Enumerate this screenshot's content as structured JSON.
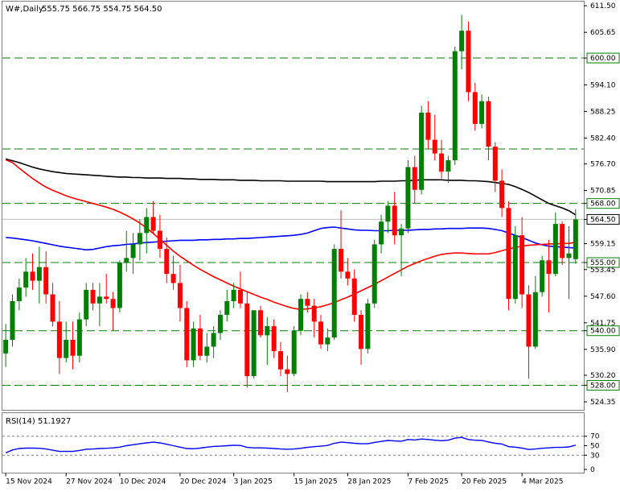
{
  "chart_data": [
    {
      "type": "candlestick",
      "title": "W#,Daily",
      "ohlc_label": "555.75 566.75 554.75 564.50",
      "ylim": [
        522.5,
        612.5
      ],
      "grid": false,
      "yticks": [
        611.5,
        605.65,
        600.0,
        594.1,
        588.25,
        582.4,
        576.7,
        570.85,
        568.0,
        564.5,
        559.15,
        555.0,
        553.45,
        547.6,
        541.75,
        540.0,
        535.9,
        530.2,
        528.0,
        524.35
      ],
      "x_labels": [
        "15 Nov 2024",
        "27 Nov 2024",
        "10 Dec 2024",
        "20 Dec 2024",
        "3 Jan 2025",
        "15 Jan 2025",
        "28 Jan 2025",
        "7 Feb 2025",
        "20 Feb 2025",
        "4 Mar 2025"
      ],
      "horizontal_levels": [
        600.0,
        580.0,
        568.0,
        555.0,
        540.0,
        528.0
      ],
      "current_price": 564.5,
      "candles": [
        [
          535.0,
          541.5,
          532.0,
          538.0
        ],
        [
          538.0,
          548.0,
          536.5,
          546.5
        ],
        [
          546.5,
          551.5,
          544.5,
          549.5
        ],
        [
          549.5,
          556.0,
          547.5,
          553.0
        ],
        [
          553.0,
          557.0,
          549.0,
          551.0
        ],
        [
          551.0,
          558.5,
          546.0,
          554.0
        ],
        [
          554.0,
          557.5,
          546.0,
          548.0
        ],
        [
          548.0,
          550.5,
          541.0,
          542.0
        ],
        [
          542.0,
          546.5,
          530.5,
          534.0
        ],
        [
          534.0,
          542.0,
          533.0,
          538.0
        ],
        [
          538.0,
          542.0,
          531.5,
          534.5
        ],
        [
          534.5,
          544.0,
          533.0,
          542.5
        ],
        [
          542.5,
          550.5,
          541.0,
          549.0
        ],
        [
          549.0,
          550.5,
          544.5,
          546.0
        ],
        [
          546.0,
          550.5,
          541.0,
          547.5
        ],
        [
          547.5,
          552.5,
          546.0,
          547.0
        ],
        [
          547.0,
          548.5,
          540.0,
          545.0
        ],
        [
          545.0,
          555.5,
          544.0,
          555.0
        ],
        [
          555.0,
          562.0,
          553.0,
          556.0
        ],
        [
          556.0,
          561.5,
          552.5,
          559.0
        ],
        [
          559.0,
          564.5,
          555.5,
          561.5
        ],
        [
          561.5,
          567.0,
          557.0,
          565.0
        ],
        [
          565.0,
          568.5,
          561.5,
          562.0
        ],
        [
          562.0,
          565.5,
          556.0,
          558.0
        ],
        [
          558.0,
          560.5,
          550.5,
          552.5
        ],
        [
          552.5,
          556.5,
          549.0,
          550.5
        ],
        [
          550.5,
          554.5,
          542.0,
          545.0
        ],
        [
          545.0,
          546.5,
          532.0,
          533.5
        ],
        [
          533.5,
          542.0,
          532.0,
          540.5
        ],
        [
          540.5,
          543.5,
          533.5,
          534.5
        ],
        [
          534.5,
          539.5,
          533.0,
          536.5
        ],
        [
          536.5,
          541.0,
          534.0,
          539.5
        ],
        [
          539.5,
          544.5,
          538.0,
          543.5
        ],
        [
          543.5,
          549.0,
          542.0,
          546.5
        ],
        [
          546.5,
          550.5,
          545.0,
          549.0
        ],
        [
          549.0,
          553.0,
          545.0,
          546.0
        ],
        [
          546.0,
          548.5,
          527.5,
          530.0
        ],
        [
          530.0,
          544.5,
          529.5,
          544.5
        ],
        [
          544.5,
          545.5,
          538.5,
          539.0
        ],
        [
          539.0,
          543.0,
          532.5,
          541.0
        ],
        [
          541.0,
          542.5,
          534.0,
          535.5
        ],
        [
          535.5,
          537.5,
          530.0,
          531.5
        ],
        [
          531.5,
          534.5,
          526.5,
          530.5
        ],
        [
          530.5,
          541.0,
          530.0,
          540.0
        ],
        [
          540.0,
          548.0,
          539.0,
          547.0
        ],
        [
          547.0,
          548.5,
          544.0,
          545.5
        ],
        [
          545.5,
          547.0,
          538.5,
          542.0
        ],
        [
          542.0,
          543.5,
          536.0,
          537.0
        ],
        [
          537.0,
          540.5,
          535.5,
          538.5
        ],
        [
          538.5,
          559.0,
          538.0,
          558.0
        ],
        [
          558.0,
          566.5,
          551.5,
          553.0
        ],
        [
          553.0,
          556.0,
          550.0,
          551.5
        ],
        [
          551.5,
          553.5,
          542.0,
          543.5
        ],
        [
          543.5,
          544.5,
          532.5,
          536.0
        ],
        [
          536.0,
          547.0,
          535.0,
          546.0
        ],
        [
          546.0,
          560.0,
          545.0,
          559.0
        ],
        [
          559.0,
          565.5,
          557.0,
          564.0
        ],
        [
          564.0,
          568.5,
          561.5,
          567.5
        ],
        [
          567.5,
          570.5,
          559.0,
          561.0
        ],
        [
          561.0,
          563.5,
          552.0,
          562.5
        ],
        [
          562.5,
          577.5,
          561.5,
          576.0
        ],
        [
          576.0,
          578.5,
          568.0,
          571.0
        ],
        [
          571.0,
          589.5,
          570.0,
          588.0
        ],
        [
          588.0,
          590.5,
          580.0,
          582.0
        ],
        [
          582.0,
          587.5,
          577.5,
          579.0
        ],
        [
          579.0,
          582.0,
          573.5,
          575.0
        ],
        [
          575.0,
          578.5,
          572.5,
          577.5
        ],
        [
          577.5,
          602.5,
          576.5,
          601.5
        ],
        [
          601.5,
          609.5,
          597.5,
          606.0
        ],
        [
          606.0,
          608.0,
          590.5,
          592.5
        ],
        [
          592.5,
          594.5,
          584.0,
          585.5
        ],
        [
          585.5,
          592.0,
          584.5,
          590.5
        ],
        [
          590.5,
          591.5,
          577.5,
          580.5
        ],
        [
          580.5,
          581.5,
          570.5,
          573.0
        ],
        [
          573.0,
          575.5,
          565.0,
          567.0
        ],
        [
          567.0,
          568.5,
          544.5,
          547.0
        ],
        [
          547.0,
          563.0,
          546.0,
          561.0
        ],
        [
          561.0,
          565.0,
          545.0,
          548.0
        ],
        [
          548.0,
          550.0,
          529.5,
          536.5
        ],
        [
          536.5,
          552.0,
          536.0,
          548.5
        ],
        [
          548.5,
          556.5,
          547.5,
          555.5
        ],
        [
          555.5,
          560.0,
          544.0,
          552.5
        ],
        [
          552.5,
          566.0,
          552.0,
          563.5
        ],
        [
          563.5,
          564.0,
          554.5,
          556.0
        ],
        [
          556.0,
          563.0,
          547.0,
          557.0
        ],
        [
          555.75,
          566.75,
          554.75,
          564.5
        ]
      ],
      "ma_black": [
        577.8,
        577.4,
        577.0,
        576.5,
        576.0,
        575.6,
        575.3,
        575.0,
        574.8,
        574.6,
        574.5,
        574.4,
        574.3,
        574.2,
        574.1,
        574.0,
        573.9,
        573.8,
        573.8,
        573.7,
        573.7,
        573.6,
        573.6,
        573.6,
        573.5,
        573.5,
        573.5,
        573.4,
        573.4,
        573.3,
        573.3,
        573.3,
        573.2,
        573.2,
        573.2,
        573.1,
        573.1,
        573.1,
        573.0,
        573.0,
        573.0,
        573.0,
        572.9,
        572.9,
        572.9,
        572.9,
        572.9,
        572.9,
        572.8,
        572.8,
        572.8,
        572.8,
        572.8,
        572.8,
        572.8,
        572.8,
        572.9,
        572.9,
        572.9,
        573.0,
        573.0,
        573.1,
        573.2,
        573.2,
        573.2,
        573.2,
        573.1,
        573.1,
        573.1,
        573.0,
        573.0,
        572.9,
        572.8,
        572.6,
        572.4,
        572.2,
        571.7,
        571.1,
        570.4,
        569.6,
        568.8,
        568.0,
        567.5,
        567.0,
        566.4,
        565.5
      ],
      "ma_red": [
        577.6,
        577.0,
        575.8,
        574.6,
        573.5,
        572.5,
        571.6,
        570.9,
        570.3,
        569.7,
        569.2,
        568.8,
        568.4,
        568.0,
        567.6,
        567.2,
        566.7,
        566.1,
        565.4,
        564.6,
        563.7,
        562.6,
        561.4,
        560.1,
        558.8,
        557.5,
        556.4,
        555.4,
        554.4,
        553.5,
        552.7,
        551.9,
        551.2,
        550.5,
        549.8,
        549.2,
        548.6,
        548.0,
        547.4,
        546.9,
        546.3,
        545.8,
        545.3,
        544.9,
        544.7,
        544.8,
        545.0,
        545.3,
        545.7,
        546.2,
        546.8,
        547.4,
        548.1,
        548.8,
        549.5,
        550.2,
        551.0,
        551.8,
        552.6,
        553.4,
        554.2,
        554.8,
        555.4,
        555.9,
        556.4,
        556.8,
        557.0,
        557.1,
        557.1,
        557.0,
        556.9,
        556.9,
        556.9,
        557.2,
        557.6,
        558.0,
        558.3,
        558.6,
        558.8,
        558.9,
        559.0,
        559.1,
        559.1,
        559.2,
        559.2,
        559.5
      ],
      "ma_blue": [
        560.5,
        560.4,
        560.2,
        560.0,
        559.8,
        559.5,
        559.2,
        558.9,
        558.6,
        558.4,
        558.2,
        558.0,
        557.8,
        557.9,
        558.2,
        558.5,
        558.7,
        558.8,
        559.0,
        559.1,
        559.3,
        559.4,
        559.5,
        559.6,
        559.7,
        559.8,
        559.9,
        559.9,
        559.9,
        560.0,
        560.0,
        560.1,
        560.1,
        560.2,
        560.2,
        560.3,
        560.3,
        560.4,
        560.5,
        560.6,
        560.7,
        560.8,
        560.9,
        561.0,
        561.2,
        561.5,
        562.0,
        562.5,
        562.7,
        562.8,
        562.6,
        562.4,
        562.2,
        562.1,
        562.1,
        562.0,
        562.0,
        562.0,
        562.1,
        562.1,
        562.1,
        562.2,
        562.3,
        562.3,
        562.4,
        562.4,
        562.5,
        562.5,
        562.5,
        562.6,
        562.6,
        562.6,
        562.5,
        562.3,
        562.0,
        561.5,
        561.0,
        560.5,
        559.9,
        559.3,
        558.9,
        558.6,
        558.5,
        558.4,
        558.3,
        558.2
      ]
    },
    {
      "type": "line",
      "title": "RSI(14) 51.1927",
      "ylim": [
        0,
        100
      ],
      "yticks": [
        70,
        50,
        30,
        0
      ],
      "horizontal_levels": [
        70,
        30
      ],
      "grid": false,
      "values": [
        35.0,
        41.0,
        44.0,
        45.0,
        45.0,
        44.5,
        43.0,
        40.5,
        38.0,
        38.0,
        38.0,
        40.0,
        42.5,
        43.0,
        44.0,
        44.5,
        45.5,
        47.0,
        50.0,
        52.0,
        54.0,
        56.0,
        57.5,
        56.0,
        53.0,
        50.0,
        47.0,
        44.0,
        43.5,
        45.0,
        47.0,
        48.5,
        49.0,
        50.0,
        51.0,
        50.5,
        46.5,
        45.5,
        45.5,
        45.0,
        44.0,
        43.0,
        42.5,
        43.0,
        44.5,
        46.5,
        48.0,
        49.0,
        50.5,
        55.0,
        57.5,
        56.5,
        55.0,
        54.0,
        54.0,
        57.0,
        59.0,
        61.0,
        60.0,
        59.5,
        63.0,
        62.0,
        64.0,
        63.0,
        61.5,
        60.5,
        61.5,
        66.0,
        67.5,
        63.0,
        61.5,
        61.0,
        58.0,
        55.0,
        53.5,
        48.0,
        47.0,
        45.0,
        42.0,
        43.0,
        44.5,
        45.5,
        46.5,
        46.5,
        47.5,
        51.19
      ]
    }
  ],
  "colors": {
    "up": "#008000",
    "down": "#ff0000",
    "ma_black": "#000000",
    "ma_red": "#ff0000",
    "ma_blue": "#0000ff",
    "rsi_line": "#0000ff",
    "level_line": "#008000",
    "price_line": "#c0c0c0",
    "frame": "#808080",
    "background": "#ffffff",
    "label_fill": "#ffffff"
  }
}
